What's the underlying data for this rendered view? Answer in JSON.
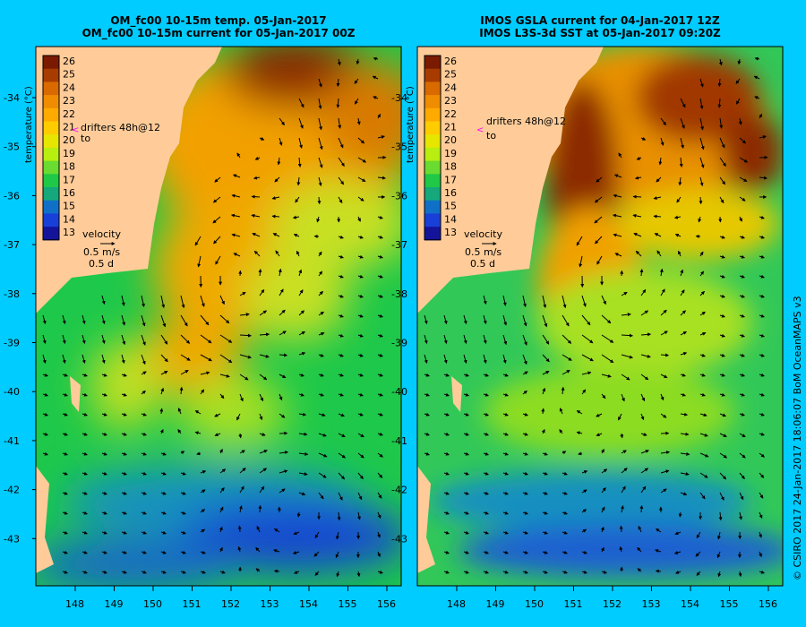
{
  "panels": [
    {
      "id": "left",
      "title_line1": "OM_fc00 10-15m temp. 05-Jan-2017",
      "title_line2": "OM_fc00 10-15m current for 05-Jan-2017 00Z",
      "colorbar_label": "temperature (°C)",
      "drifters_label": "drifters 48h@12",
      "drifters_to": "to",
      "velocity_label": "velocity",
      "velocity_scale": "0.5 m/s",
      "velocity_time": "0.5 d"
    },
    {
      "id": "right",
      "title_line1": "IMOS GSLA current for 04-Jan-2017 12Z",
      "title_line2": "IMOS L3S-3d SST at 05-Jan-2017 09:20Z",
      "colorbar_label": "temperature (°C)",
      "drifters_label": "drifters 48h@12",
      "drifters_to": "to",
      "velocity_label": "velocity",
      "velocity_scale": "0.5 m/s",
      "velocity_time": "0.5 d"
    }
  ],
  "colorbar_ticks": [
    "26",
    "25",
    "24",
    "23",
    "22",
    "21",
    "20",
    "19",
    "18",
    "17",
    "16",
    "15",
    "14",
    "13"
  ],
  "colorbar_colors": [
    "#7a1a00",
    "#a83c00",
    "#d96a00",
    "#f08c00",
    "#ffaa00",
    "#ffcc00",
    "#e6e600",
    "#b8ee10",
    "#6adb30",
    "#1fc846",
    "#14a87a",
    "#1070c8",
    "#1840d8",
    "#14149a"
  ],
  "lat_labels": [
    "-34",
    "-35",
    "-36",
    "-37",
    "-38",
    "-39",
    "-40",
    "-41",
    "-42",
    "-43"
  ],
  "lon_labels": [
    "148",
    "149",
    "150",
    "151",
    "152",
    "153",
    "154",
    "155",
    "156"
  ],
  "credit": "© CSIRO 2017   24-Jan-2017 18:06:07 BoM OceanMAPS v3",
  "colors": {
    "background": "#00ccff",
    "land": "#ffcc99",
    "arrow": "#000000",
    "drifter": "#ff00ff"
  }
}
